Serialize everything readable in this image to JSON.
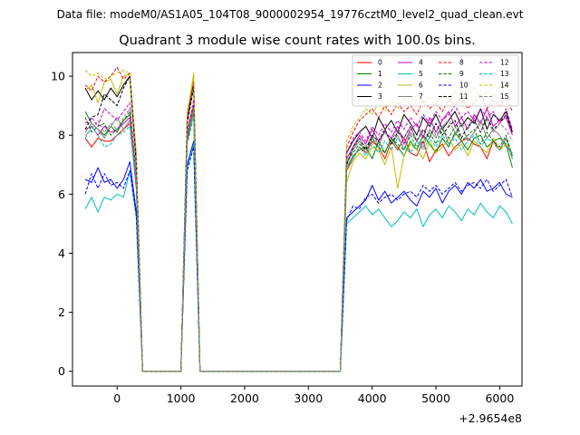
{
  "chart_data": {
    "type": "line",
    "suptitle": "Data file: modeM0/AS1A05_104T08_9000002954_19776cztM0_level2_quad_clean.evt",
    "title": "Quadrant 3 module wise count rates with 100.0s bins.",
    "xlabel": "",
    "ylabel": "",
    "x_offset_label": "+2.9654e8",
    "xlim": [
      -700,
      6350
    ],
    "ylim": [
      -0.5,
      10.8
    ],
    "xticks": [
      0,
      1000,
      2000,
      3000,
      4000,
      5000,
      6000
    ],
    "yticks": [
      0,
      2,
      4,
      6,
      8,
      10
    ],
    "legend_location": "upper right",
    "legend_columns": 4,
    "x": [
      -500,
      -400,
      -300,
      -200,
      -100,
      0,
      100,
      200,
      300,
      400,
      500,
      600,
      700,
      800,
      900,
      1000,
      1100,
      1200,
      1300,
      1400,
      1500,
      1600,
      1700,
      1800,
      1900,
      2000,
      2100,
      2200,
      2300,
      2400,
      2500,
      2600,
      2700,
      2800,
      2900,
      3000,
      3100,
      3200,
      3300,
      3400,
      3500,
      3600,
      3700,
      3800,
      3900,
      4000,
      4100,
      4200,
      4300,
      4400,
      4500,
      4600,
      4700,
      4800,
      4900,
      5000,
      5100,
      5200,
      5300,
      5400,
      5500,
      5600,
      5700,
      5800,
      5900,
      6000,
      6100,
      6200
    ],
    "series": [
      {
        "name": "0",
        "color": "#ff0000",
        "dash": "solid",
        "values": [
          7.9,
          7.6,
          7.9,
          7.8,
          7.8,
          8.0,
          8.2,
          8.4,
          6.2,
          0,
          0,
          0,
          0,
          0,
          0,
          0,
          8.0,
          9.0,
          0,
          0,
          0,
          0,
          0,
          0,
          0,
          0,
          0,
          0,
          0,
          0,
          0,
          0,
          0,
          0,
          0,
          0,
          0,
          0,
          0,
          0,
          0,
          6.8,
          7.2,
          7.6,
          7.4,
          7.8,
          7.6,
          7.2,
          7.8,
          7.5,
          7.9,
          7.4,
          7.3,
          7.8,
          7.1,
          7.5,
          7.7,
          7.3,
          7.6,
          7.8,
          7.9,
          7.7,
          7.6,
          7.2,
          7.8,
          7.5,
          7.9,
          7.2
        ]
      },
      {
        "name": "1",
        "color": "#008000",
        "dash": "solid",
        "values": [
          8.8,
          8.4,
          8.2,
          8.0,
          8.3,
          8.1,
          8.5,
          8.7,
          6.4,
          0,
          0,
          0,
          0,
          0,
          0,
          0,
          7.8,
          8.8,
          0,
          0,
          0,
          0,
          0,
          0,
          0,
          0,
          0,
          0,
          0,
          0,
          0,
          0,
          0,
          0,
          0,
          0,
          0,
          0,
          0,
          0,
          0,
          6.9,
          7.3,
          7.5,
          7.6,
          7.2,
          7.8,
          7.4,
          7.9,
          7.6,
          7.3,
          7.8,
          7.5,
          8.0,
          7.7,
          7.4,
          7.9,
          7.6,
          8.1,
          7.8,
          7.5,
          7.9,
          8.0,
          7.6,
          7.8,
          7.9,
          7.7,
          6.9
        ]
      },
      {
        "name": "2",
        "color": "#0000ff",
        "dash": "solid",
        "values": [
          6.5,
          6.4,
          6.9,
          6.4,
          6.5,
          6.2,
          6.5,
          7.1,
          5.4,
          0,
          0,
          0,
          0,
          0,
          0,
          0,
          7.0,
          7.8,
          0,
          0,
          0,
          0,
          0,
          0,
          0,
          0,
          0,
          0,
          0,
          0,
          0,
          0,
          0,
          0,
          0,
          0,
          0,
          0,
          0,
          0,
          0,
          5.2,
          5.4,
          5.6,
          5.8,
          6.3,
          5.8,
          6.1,
          5.7,
          5.9,
          6.1,
          5.8,
          5.6,
          6.1,
          5.9,
          6.2,
          5.7,
          6.1,
          6.3,
          6.0,
          6.4,
          6.2,
          6.5,
          6.1,
          6.2,
          6.4,
          6.0,
          5.9
        ]
      },
      {
        "name": "3",
        "color": "#000000",
        "dash": "solid",
        "values": [
          9.6,
          9.2,
          9.5,
          9.2,
          9.6,
          9.3,
          9.7,
          10.0,
          7.1,
          0,
          0,
          0,
          0,
          0,
          0,
          0,
          8.5,
          9.8,
          0,
          0,
          0,
          0,
          0,
          0,
          0,
          0,
          0,
          0,
          0,
          0,
          0,
          0,
          0,
          0,
          0,
          0,
          0,
          0,
          0,
          0,
          0,
          7.4,
          7.8,
          8.1,
          8.3,
          7.9,
          8.6,
          8.2,
          8.5,
          8.1,
          8.7,
          8.4,
          8.0,
          8.6,
          8.3,
          8.7,
          8.2,
          8.5,
          8.8,
          8.3,
          8.6,
          8.4,
          8.9,
          8.2,
          8.7,
          8.5,
          8.8,
          8.1
        ]
      },
      {
        "name": "4",
        "color": "#cc00cc",
        "dash": "solid",
        "values": [
          8.2,
          8.3,
          8.0,
          8.3,
          8.1,
          8.2,
          8.4,
          8.6,
          6.3,
          0,
          0,
          0,
          0,
          0,
          0,
          0,
          7.9,
          9.0,
          0,
          0,
          0,
          0,
          0,
          0,
          0,
          0,
          0,
          0,
          0,
          0,
          0,
          0,
          0,
          0,
          0,
          0,
          0,
          0,
          0,
          0,
          0,
          7.2,
          7.6,
          8.0,
          7.7,
          8.2,
          7.8,
          8.1,
          7.9,
          8.3,
          7.7,
          8.2,
          8.4,
          7.9,
          8.6,
          8.1,
          8.5,
          8.8,
          8.3,
          8.6,
          8.2,
          8.7,
          8.4,
          8.9,
          8.3,
          8.5,
          8.6,
          8.0
        ]
      },
      {
        "name": "5",
        "color": "#00bfbf",
        "dash": "solid",
        "values": [
          5.5,
          5.9,
          5.4,
          5.9,
          5.8,
          6.0,
          5.9,
          6.8,
          5.2,
          0,
          0,
          0,
          0,
          0,
          0,
          0,
          6.9,
          7.7,
          0,
          0,
          0,
          0,
          0,
          0,
          0,
          0,
          0,
          0,
          0,
          0,
          0,
          0,
          0,
          0,
          0,
          0,
          0,
          0,
          0,
          0,
          0,
          5.0,
          5.2,
          5.4,
          5.6,
          5.3,
          5.5,
          5.2,
          4.9,
          5.1,
          5.4,
          5.2,
          5.5,
          4.9,
          5.3,
          5.5,
          5.2,
          5.6,
          5.4,
          5.1,
          5.5,
          5.3,
          5.7,
          5.4,
          5.2,
          5.6,
          5.4,
          5.0
        ]
      },
      {
        "name": "6",
        "color": "#bfbf00",
        "dash": "solid",
        "values": [
          9.5,
          9.7,
          9.1,
          9.8,
          9.9,
          9.4,
          10.0,
          10.1,
          7.2,
          0,
          0,
          0,
          0,
          0,
          0,
          0,
          8.6,
          10.1,
          0,
          0,
          0,
          0,
          0,
          0,
          0,
          0,
          0,
          0,
          0,
          0,
          0,
          0,
          0,
          0,
          0,
          0,
          0,
          0,
          0,
          0,
          0,
          6.4,
          7.1,
          7.4,
          7.2,
          7.6,
          7.5,
          7.0,
          7.6,
          6.2,
          7.3,
          7.7,
          7.5,
          7.2,
          7.8,
          7.4,
          7.6,
          7.9,
          7.5,
          7.7,
          7.3,
          7.8,
          7.6,
          7.4,
          7.9,
          7.5,
          7.7,
          7.3
        ]
      },
      {
        "name": "7",
        "color": "#808080",
        "dash": "solid",
        "values": [
          8.1,
          8.4,
          8.2,
          7.9,
          8.3,
          8.6,
          8.2,
          8.5,
          6.4,
          0,
          0,
          0,
          0,
          0,
          0,
          0,
          8.0,
          8.8,
          0,
          0,
          0,
          0,
          0,
          0,
          0,
          0,
          0,
          0,
          0,
          0,
          0,
          0,
          0,
          0,
          0,
          0,
          0,
          0,
          0,
          0,
          0,
          7.0,
          7.5,
          7.8,
          7.4,
          7.9,
          7.6,
          8.2,
          7.7,
          8.0,
          7.5,
          8.1,
          7.8,
          7.6,
          8.2,
          7.9,
          8.3,
          7.7,
          8.0,
          8.4,
          7.8,
          8.1,
          8.5,
          7.9,
          8.2,
          8.0,
          7.6,
          7.4
        ]
      },
      {
        "name": "8",
        "color": "#ff0000",
        "dash": "dashed",
        "values": [
          9.7,
          9.5,
          10.0,
          9.8,
          10.0,
          10.3,
          9.9,
          10.1,
          7.3,
          0,
          0,
          0,
          0,
          0,
          0,
          0,
          8.7,
          9.8,
          0,
          0,
          0,
          0,
          0,
          0,
          0,
          0,
          0,
          0,
          0,
          0,
          0,
          0,
          0,
          0,
          0,
          0,
          0,
          0,
          0,
          0,
          0,
          7.6,
          8.1,
          8.5,
          8.7,
          8.9,
          8.6,
          9.0,
          8.7,
          9.1,
          8.8,
          9.0,
          8.7,
          9.2,
          8.9,
          9.1,
          8.8,
          9.2,
          9.0,
          9.3,
          8.9,
          9.1,
          9.4,
          8.9,
          9.2,
          9.0,
          9.3,
          8.8
        ]
      },
      {
        "name": "9",
        "color": "#008000",
        "dash": "dashed",
        "values": [
          8.6,
          8.1,
          8.3,
          8.4,
          8.0,
          8.2,
          8.5,
          8.8,
          6.5,
          0,
          0,
          0,
          0,
          0,
          0,
          0,
          8.2,
          9.0,
          0,
          0,
          0,
          0,
          0,
          0,
          0,
          0,
          0,
          0,
          0,
          0,
          0,
          0,
          0,
          0,
          0,
          0,
          0,
          0,
          0,
          0,
          0,
          7.1,
          7.4,
          7.7,
          7.5,
          7.9,
          7.6,
          7.4,
          7.9,
          7.7,
          7.5,
          8.0,
          7.6,
          7.8,
          8.1,
          7.7,
          8.2,
          7.9,
          8.3,
          7.8,
          8.0,
          8.2,
          7.7,
          8.1,
          7.8,
          7.6,
          8.0,
          7.3
        ]
      },
      {
        "name": "10",
        "color": "#0000ff",
        "dash": "dashed",
        "values": [
          6.0,
          6.7,
          6.2,
          6.7,
          6.3,
          6.4,
          6.2,
          6.8,
          5.3,
          0,
          0,
          0,
          0,
          0,
          0,
          0,
          6.8,
          7.6,
          0,
          0,
          0,
          0,
          0,
          0,
          0,
          0,
          0,
          0,
          0,
          0,
          0,
          0,
          0,
          0,
          0,
          0,
          0,
          0,
          0,
          0,
          0,
          5.1,
          5.6,
          5.5,
          5.9,
          6.0,
          5.7,
          5.9,
          6.0,
          5.8,
          6.0,
          6.1,
          5.9,
          6.3,
          6.1,
          6.3,
          6.0,
          6.2,
          6.4,
          6.1,
          6.3,
          6.4,
          6.2,
          6.5,
          6.1,
          6.3,
          6.5,
          5.9
        ]
      },
      {
        "name": "11",
        "color": "#000000",
        "dash": "dashed",
        "values": [
          8.2,
          8.6,
          8.7,
          9.4,
          9.2,
          9.0,
          9.6,
          10.0,
          7.0,
          0,
          0,
          0,
          0,
          0,
          0,
          0,
          8.4,
          9.6,
          0,
          0,
          0,
          0,
          0,
          0,
          0,
          0,
          0,
          0,
          0,
          0,
          0,
          0,
          0,
          0,
          0,
          0,
          0,
          0,
          0,
          0,
          0,
          7.0,
          7.6,
          7.9,
          7.5,
          8.0,
          7.8,
          8.2,
          7.7,
          8.1,
          7.9,
          8.3,
          7.8,
          8.2,
          7.9,
          8.4,
          8.0,
          8.3,
          8.5,
          7.9,
          8.3,
          8.5,
          8.1,
          8.6,
          8.2,
          8.4,
          8.7,
          8.1
        ]
      },
      {
        "name": "12",
        "color": "#cc00cc",
        "dash": "dashed",
        "values": [
          8.4,
          8.6,
          8.3,
          8.9,
          8.7,
          8.5,
          8.8,
          9.1,
          6.6,
          0,
          0,
          0,
          0,
          0,
          0,
          0,
          8.1,
          9.2,
          0,
          0,
          0,
          0,
          0,
          0,
          0,
          0,
          0,
          0,
          0,
          0,
          0,
          0,
          0,
          0,
          0,
          0,
          0,
          0,
          0,
          0,
          0,
          7.4,
          7.9,
          8.1,
          7.8,
          8.3,
          8.0,
          8.4,
          8.1,
          8.5,
          8.2,
          8.6,
          8.3,
          8.7,
          8.4,
          8.8,
          8.5,
          8.7,
          9.0,
          8.6,
          8.8,
          8.5,
          8.9,
          8.6,
          8.8,
          8.4,
          8.9,
          8.2
        ]
      },
      {
        "name": "13",
        "color": "#00bfbf",
        "dash": "dashed",
        "values": [
          7.9,
          8.3,
          8.0,
          7.6,
          7.7,
          8.0,
          8.1,
          8.3,
          6.2,
          0,
          0,
          0,
          0,
          0,
          0,
          0,
          7.7,
          8.6,
          0,
          0,
          0,
          0,
          0,
          0,
          0,
          0,
          0,
          0,
          0,
          0,
          0,
          0,
          0,
          0,
          0,
          0,
          0,
          0,
          0,
          0,
          0,
          6.9,
          7.2,
          7.6,
          7.3,
          7.7,
          7.4,
          7.8,
          7.5,
          7.9,
          7.6,
          7.4,
          7.8,
          7.5,
          7.9,
          7.6,
          8.0,
          7.7,
          7.9,
          7.5,
          7.8,
          8.0,
          7.6,
          7.9,
          7.7,
          7.5,
          7.9,
          7.2
        ]
      },
      {
        "name": "14",
        "color": "#bfbf00",
        "dash": "dashed",
        "values": [
          10.2,
          10.0,
          10.1,
          9.9,
          10.0,
          10.1,
          10.2,
          10.1,
          7.4,
          0,
          0,
          0,
          0,
          0,
          0,
          0,
          8.8,
          10.0,
          0,
          0,
          0,
          0,
          0,
          0,
          0,
          0,
          0,
          0,
          0,
          0,
          0,
          0,
          0,
          0,
          0,
          0,
          0,
          0,
          0,
          0,
          0,
          7.8,
          8.3,
          8.6,
          8.9,
          8.7,
          9.1,
          8.8,
          9.2,
          8.9,
          9.3,
          9.0,
          9.4,
          9.1,
          9.3,
          9.0,
          9.4,
          9.2,
          9.5,
          9.1,
          9.4,
          9.6,
          9.2,
          9.5,
          9.3,
          9.6,
          9.7,
          9.2
        ]
      },
      {
        "name": "15",
        "color": "#808080",
        "dash": "dashed",
        "values": [
          8.0,
          8.2,
          8.5,
          8.1,
          8.4,
          8.2,
          8.6,
          8.9,
          6.5,
          0,
          0,
          0,
          0,
          0,
          0,
          0,
          8.0,
          8.9,
          0,
          0,
          0,
          0,
          0,
          0,
          0,
          0,
          0,
          0,
          0,
          0,
          0,
          0,
          0,
          0,
          0,
          0,
          0,
          0,
          0,
          0,
          0,
          7.1,
          7.5,
          7.9,
          7.6,
          8.0,
          7.7,
          8.1,
          7.8,
          8.2,
          7.9,
          8.3,
          7.8,
          8.1,
          8.4,
          8.0,
          8.3,
          8.5,
          8.1,
          8.4,
          8.2,
          8.6,
          8.3,
          8.5,
          8.1,
          8.4,
          8.2,
          7.8
        ]
      }
    ]
  }
}
